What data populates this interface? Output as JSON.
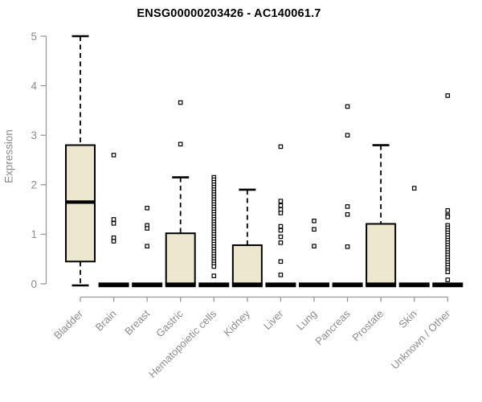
{
  "chart_data": {
    "type": "boxplot",
    "title": "ENSG00000203426 - AC140061.7",
    "ylabel": "Expression",
    "xlabel": "",
    "ylim": [
      0,
      5
    ],
    "yticks": [
      0,
      1,
      2,
      3,
      4,
      5
    ],
    "grid": false,
    "legend": false,
    "categories": [
      "Bladder",
      "Brain",
      "Breast",
      "Gastric",
      "Hematopoietic cells",
      "Kidney",
      "Liver",
      "Lung",
      "Pancreas",
      "Prostate",
      "Skin",
      "Unknown / Other"
    ],
    "series": [
      {
        "name": "Bladder",
        "min": 0,
        "q1": 0.45,
        "median": 1.65,
        "q3": 2.8,
        "max": 5.0,
        "outliers": []
      },
      {
        "name": "Brain",
        "min": 0,
        "q1": 0,
        "median": 0,
        "q3": 0,
        "max": 0,
        "outliers": [
          2.6,
          1.3,
          1.22,
          0.93,
          0.86
        ]
      },
      {
        "name": "Breast",
        "min": 0,
        "q1": 0,
        "median": 0,
        "q3": 0,
        "max": 0,
        "outliers": [
          1.53,
          1.18,
          1.12,
          0.76
        ]
      },
      {
        "name": "Gastric",
        "min": 0,
        "q1": 0,
        "median": 0,
        "q3": 1.02,
        "max": 2.15,
        "outliers": [
          3.66,
          2.82
        ]
      },
      {
        "name": "Hematopoietic cells",
        "min": 0,
        "q1": 0,
        "median": 0,
        "q3": 0,
        "max": 0,
        "outliers": [
          2.15,
          2.1,
          2.05,
          2.0,
          1.95,
          1.9,
          1.85,
          1.8,
          1.75,
          1.7,
          1.65,
          1.6,
          1.55,
          1.5,
          1.45,
          1.4,
          1.35,
          1.3,
          1.25,
          1.2,
          1.15,
          1.1,
          1.05,
          1.0,
          0.95,
          0.9,
          0.85,
          0.8,
          0.75,
          0.7,
          0.65,
          0.6,
          0.55,
          0.5,
          0.45,
          0.4,
          0.35,
          0.16
        ]
      },
      {
        "name": "Kidney",
        "min": 0,
        "q1": 0,
        "median": 0,
        "q3": 0.78,
        "max": 1.9,
        "outliers": []
      },
      {
        "name": "Liver",
        "min": 0,
        "q1": 0,
        "median": 0,
        "q3": 0,
        "max": 0,
        "outliers": [
          2.77,
          1.67,
          1.58,
          1.5,
          1.43,
          1.16,
          1.08,
          0.95,
          0.83,
          0.45,
          0.18
        ]
      },
      {
        "name": "Lung",
        "min": 0,
        "q1": 0,
        "median": 0,
        "q3": 0,
        "max": 0,
        "outliers": [
          1.27,
          1.1,
          0.76
        ]
      },
      {
        "name": "Pancreas",
        "min": 0,
        "q1": 0,
        "median": 0,
        "q3": 0,
        "max": 0,
        "outliers": [
          3.58,
          3.0,
          1.56,
          1.4,
          0.75
        ]
      },
      {
        "name": "Prostate",
        "min": 0,
        "q1": 0,
        "median": 0,
        "q3": 1.21,
        "max": 2.8,
        "outliers": []
      },
      {
        "name": "Skin",
        "min": 0,
        "q1": 0,
        "median": 0,
        "q3": 0,
        "max": 0,
        "outliers": [
          1.93
        ]
      },
      {
        "name": "Unknown / Other",
        "min": 0,
        "q1": 0,
        "median": 0,
        "q3": 0,
        "max": 0,
        "outliers": [
          3.8,
          1.48,
          1.38,
          1.35,
          1.18,
          1.13,
          1.08,
          1.03,
          0.98,
          0.93,
          0.88,
          0.83,
          0.78,
          0.73,
          0.68,
          0.63,
          0.58,
          0.53,
          0.48,
          0.43,
          0.38,
          0.33,
          0.28,
          0.24,
          0.08
        ]
      }
    ],
    "colors": {
      "background": "#FFFFFF",
      "box_fill": "#EDE8CD",
      "box_stroke": "#000000",
      "median": "#000000",
      "whisker": "#000000",
      "outlier_stroke": "#000000",
      "outlier_fill": "#FFFFFF",
      "axis": "#9A9A9A",
      "tick_text": "#8C8C8C",
      "title_text": "#000000"
    }
  }
}
